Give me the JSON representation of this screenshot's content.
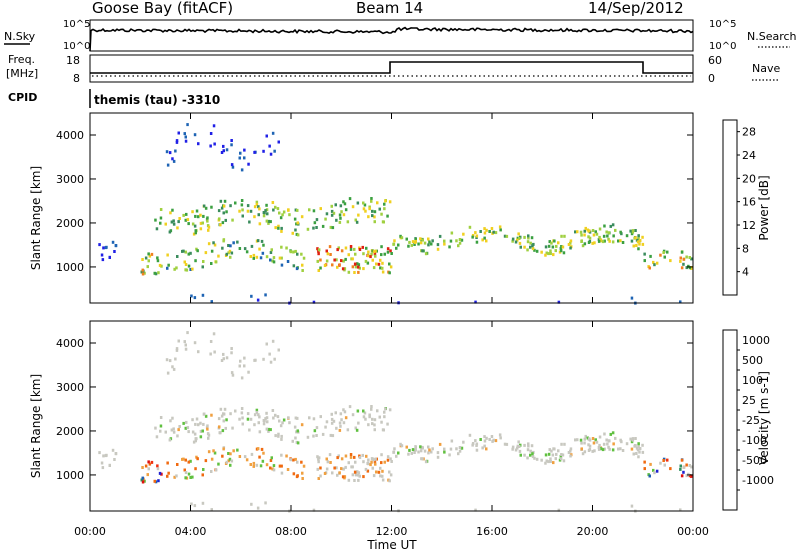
{
  "header": {
    "station": "Goose Bay (fitACF)",
    "beam": "Beam 14",
    "date": "14/Sep/2012"
  },
  "noise_panel": {
    "left_label": "N.Sky",
    "right_label": "N.Search",
    "tick_top": "10^5",
    "tick_bottom": "10^0"
  },
  "freq_panel": {
    "left_label_1": "Freq.",
    "left_label_2": "[MHz]",
    "right_label": "Nave",
    "left_tick_top": "18",
    "left_tick_bottom": "8",
    "right_tick_top": "60",
    "right_tick_bottom": "0"
  },
  "cpid": {
    "label": "CPID",
    "value": "themis (tau) -3310"
  },
  "colors": {
    "power": [
      "#2020e6",
      "#1e64b4",
      "#3a8c5c",
      "#3aa040",
      "#a0d040",
      "#f0d020",
      "#f08020",
      "#e02010"
    ],
    "velocity": [
      "#e01010",
      "#f03010",
      "#f06a10",
      "#f0a040",
      "#c8c8c0",
      "#60c040",
      "#309060",
      "#2060b0",
      "#2020d0"
    ]
  },
  "chart_data": [
    {
      "type": "heatmap",
      "title": "Power",
      "ylabel": "Slant Range [km]",
      "xlabel": "Time UT",
      "xlim": [
        0,
        24
      ],
      "ylim": [
        180,
        4500
      ],
      "x_ticks": [
        "00:00",
        "04:00",
        "08:00",
        "12:00",
        "16:00",
        "20:00",
        "00:00"
      ],
      "y_ticks": [
        "1000",
        "2000",
        "3000",
        "4000"
      ],
      "colorbar": {
        "label": "Power [dB]",
        "ticks": [
          "4",
          "8",
          "12",
          "16",
          "20",
          "24",
          "28"
        ],
        "range": [
          0,
          30
        ]
      }
    },
    {
      "type": "heatmap",
      "title": "Velocity",
      "ylabel": "Slant Range [km]",
      "xlabel": "Time UT",
      "xlim": [
        0,
        24
      ],
      "ylim": [
        180,
        4500
      ],
      "x_ticks": [
        "00:00",
        "04:00",
        "08:00",
        "12:00",
        "16:00",
        "20:00",
        "00:00"
      ],
      "y_ticks": [
        "1000",
        "2000",
        "3000",
        "4000"
      ],
      "colorbar": {
        "label": "Velocity [m s-1]",
        "ticks": [
          "1000",
          "500",
          "100",
          "25",
          "-25",
          "-100",
          "-500",
          "-1000"
        ]
      }
    }
  ]
}
